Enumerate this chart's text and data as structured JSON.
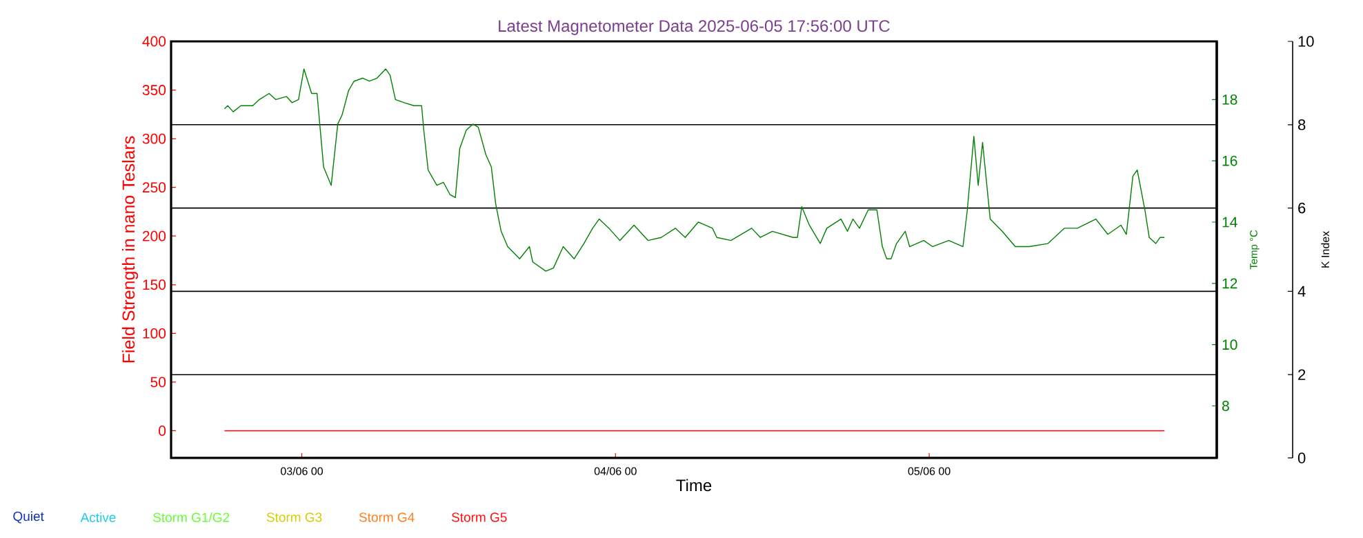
{
  "chart_data": {
    "type": "line",
    "title": "Latest Magnetometer Data 2025-06-05 17:56:00 UTC",
    "xlabel": "Time",
    "ylabel": "Field Strength in nano Teslars",
    "y2label": "Temp °C",
    "y3label": "K Index",
    "xlim": [
      "2025-06-02T14:00",
      "2025-06-05T22:00"
    ],
    "xticks": [
      {
        "value": "2025-06-03T00:00",
        "label": "03/06 00"
      },
      {
        "value": "2025-06-04T00:00",
        "label": "04/06 00"
      },
      {
        "value": "2025-06-05T00:00",
        "label": "05/06 00"
      }
    ],
    "ylim": [
      -28,
      400
    ],
    "yticks": [
      0,
      50,
      100,
      150,
      200,
      250,
      300,
      350,
      400
    ],
    "y2lim": [
      6.3,
      19.9
    ],
    "y2ticks": [
      8,
      10,
      12,
      14,
      16,
      18
    ],
    "y3lim": [
      0,
      10
    ],
    "y3ticks": [
      0,
      2,
      4,
      6,
      8,
      10
    ],
    "ref_lines": [
      {
        "axis": "y3",
        "value": 2,
        "color": "#000000"
      },
      {
        "axis": "y3",
        "value": 4,
        "color": "#000000"
      },
      {
        "axis": "y3",
        "value": 6,
        "color": "#000000"
      },
      {
        "axis": "y3",
        "value": 8,
        "color": "#000000"
      }
    ],
    "series": [
      {
        "axis": "y",
        "color": "#ff0000",
        "x": [
          "2025-06-02T18:05",
          "2025-06-05T18:00"
        ],
        "values": [
          0,
          0
        ]
      },
      {
        "axis": "y2",
        "color": "#008000",
        "x": [
          "2025-06-02T18:05",
          "2025-06-02T18:20",
          "2025-06-02T18:45",
          "2025-06-02T19:20",
          "2025-06-02T20:15",
          "2025-06-02T20:45",
          "2025-06-02T21:30",
          "2025-06-02T22:00",
          "2025-06-02T22:50",
          "2025-06-02T23:15",
          "2025-06-02T23:45",
          "2025-06-03T00:10",
          "2025-06-03T00:45",
          "2025-06-03T01:10",
          "2025-06-03T01:40",
          "2025-06-03T02:15",
          "2025-06-03T02:45",
          "2025-06-03T03:05",
          "2025-06-03T03:35",
          "2025-06-03T04:00",
          "2025-06-03T04:40",
          "2025-06-03T05:10",
          "2025-06-03T05:45",
          "2025-06-03T06:25",
          "2025-06-03T06:45",
          "2025-06-03T07:10",
          "2025-06-03T07:50",
          "2025-06-03T08:35",
          "2025-06-03T09:10",
          "2025-06-03T09:20",
          "2025-06-03T09:40",
          "2025-06-03T10:20",
          "2025-06-03T10:50",
          "2025-06-03T11:20",
          "2025-06-03T11:45",
          "2025-06-03T12:05",
          "2025-06-03T12:35",
          "2025-06-03T13:05",
          "2025-06-03T13:30",
          "2025-06-03T14:05",
          "2025-06-03T14:30",
          "2025-06-03T14:50",
          "2025-06-03T15:15",
          "2025-06-03T15:45",
          "2025-06-03T16:40",
          "2025-06-03T17:25",
          "2025-06-03T17:40",
          "2025-06-03T18:40",
          "2025-06-03T19:15",
          "2025-06-03T20:00",
          "2025-06-03T20:50",
          "2025-06-03T21:35",
          "2025-06-03T22:15",
          "2025-06-03T22:45",
          "2025-06-03T23:30",
          "2025-06-04T00:20",
          "2025-06-04T01:25",
          "2025-06-04T02:30",
          "2025-06-04T03:30",
          "2025-06-04T04:35",
          "2025-06-04T05:20",
          "2025-06-04T06:20",
          "2025-06-04T07:25",
          "2025-06-04T07:45",
          "2025-06-04T08:50",
          "2025-06-04T10:25",
          "2025-06-04T11:05",
          "2025-06-04T12:00",
          "2025-06-04T13:35",
          "2025-06-04T13:55",
          "2025-06-04T14:15",
          "2025-06-04T14:50",
          "2025-06-04T15:40",
          "2025-06-04T16:10",
          "2025-06-04T17:15",
          "2025-06-04T17:45",
          "2025-06-04T18:10",
          "2025-06-04T18:40",
          "2025-06-04T19:20",
          "2025-06-04T20:00",
          "2025-06-04T20:25",
          "2025-06-04T20:45",
          "2025-06-04T21:05",
          "2025-06-04T21:30",
          "2025-06-04T22:10",
          "2025-06-04T22:30",
          "2025-06-04T23:35",
          "2025-06-05T00:15",
          "2025-06-05T01:30",
          "2025-06-05T02:35",
          "2025-06-05T02:55",
          "2025-06-05T03:25",
          "2025-06-05T03:45",
          "2025-06-05T04:05",
          "2025-06-05T04:40",
          "2025-06-05T05:35",
          "2025-06-05T06:35",
          "2025-06-05T07:40",
          "2025-06-05T09:05",
          "2025-06-05T10:20",
          "2025-06-05T11:20",
          "2025-06-05T12:45",
          "2025-06-05T13:40",
          "2025-06-05T14:40",
          "2025-06-05T15:05",
          "2025-06-05T15:35",
          "2025-06-05T15:55",
          "2025-06-05T16:30",
          "2025-06-05T16:50",
          "2025-06-05T17:20",
          "2025-06-05T17:40",
          "2025-06-05T18:00"
        ],
        "values": [
          17.7,
          17.8,
          17.6,
          17.8,
          17.8,
          18.0,
          18.2,
          18.0,
          18.1,
          17.9,
          18.0,
          19.0,
          18.2,
          18.2,
          15.8,
          15.2,
          17.2,
          17.5,
          18.3,
          18.6,
          18.7,
          18.6,
          18.7,
          19.0,
          18.8,
          18.0,
          17.9,
          17.8,
          17.8,
          17.0,
          15.7,
          15.2,
          15.3,
          14.9,
          14.8,
          16.4,
          17.0,
          17.2,
          17.1,
          16.2,
          15.8,
          14.6,
          13.7,
          13.2,
          12.8,
          13.2,
          12.7,
          12.4,
          12.5,
          13.2,
          12.8,
          13.3,
          13.8,
          14.1,
          13.8,
          13.4,
          13.9,
          13.4,
          13.5,
          13.8,
          13.5,
          14.0,
          13.8,
          13.5,
          13.4,
          13.8,
          13.5,
          13.7,
          13.5,
          13.5,
          14.5,
          13.9,
          13.3,
          13.8,
          14.1,
          13.7,
          14.1,
          13.8,
          14.4,
          14.4,
          13.2,
          12.8,
          12.8,
          13.3,
          13.7,
          13.2,
          13.4,
          13.2,
          13.4,
          13.2,
          14.4,
          16.8,
          15.2,
          16.6,
          14.1,
          13.7,
          13.2,
          13.2,
          13.3,
          13.8,
          13.8,
          14.1,
          13.6,
          13.9,
          13.6,
          15.5,
          15.7,
          14.4,
          13.5,
          13.3,
          13.5,
          13.5
        ]
      },
      {
        "name": "Quiet",
        "color": "#1030c0"
      },
      {
        "name": "Active",
        "color": "#20c8f0"
      },
      {
        "name": "Storm G1/G2",
        "color": "#66ff33"
      },
      {
        "name": "Storm G3",
        "color": "#d8cc00"
      },
      {
        "name": "Storm G4",
        "color": "#ff7f1e"
      },
      {
        "name": "Storm G5",
        "color": "#ff1010"
      }
    ]
  }
}
